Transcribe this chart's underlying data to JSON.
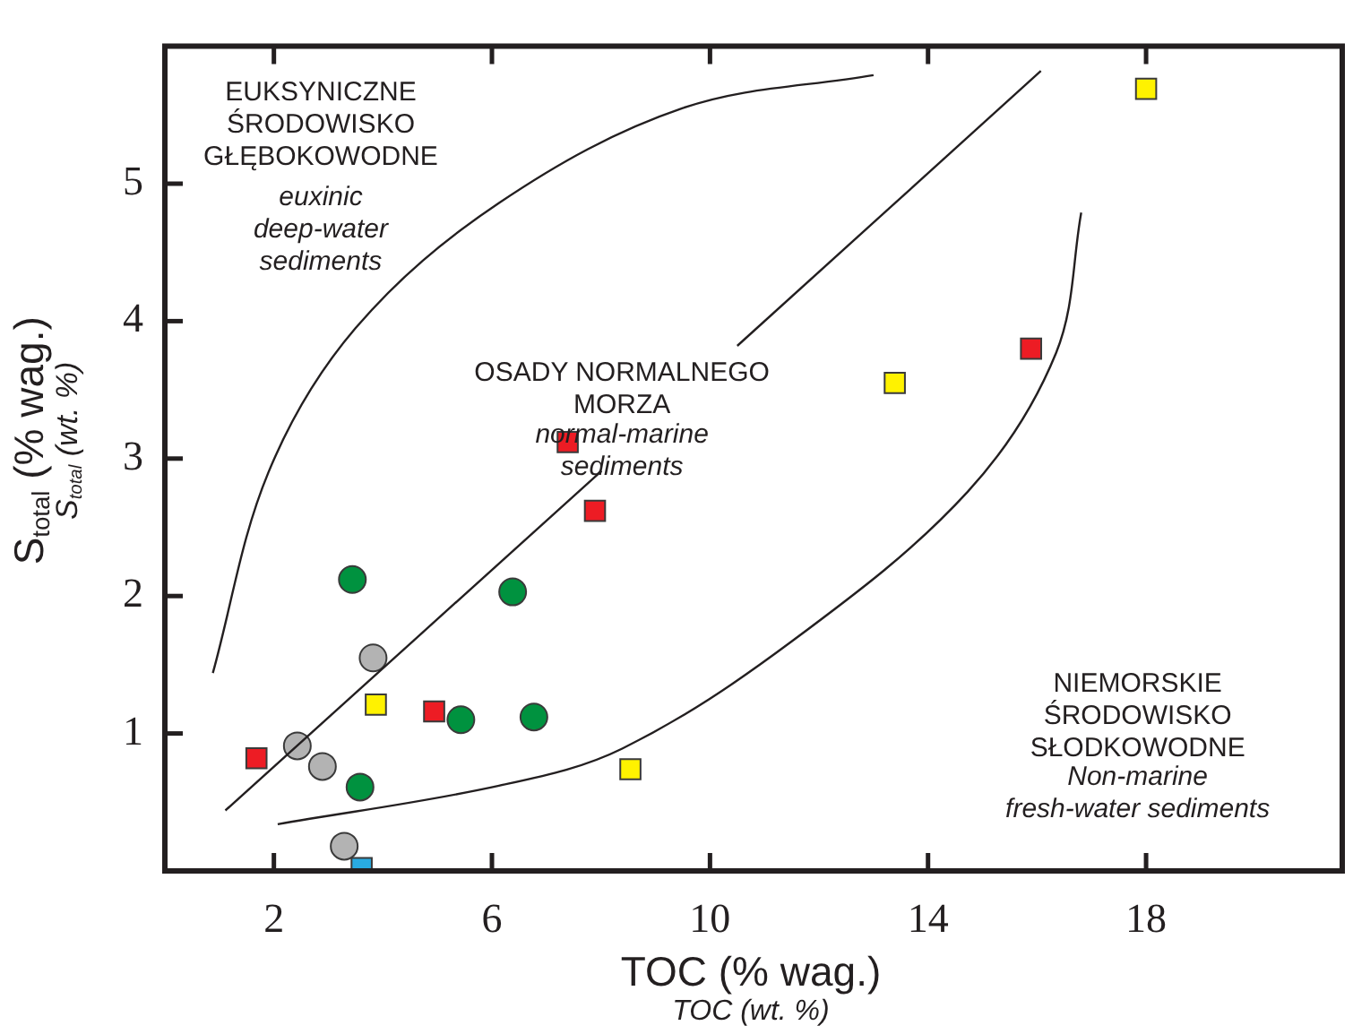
{
  "chart_data": {
    "type": "scatter",
    "xlabel": "TOC (% wag.)\nTOC (wt. %)",
    "ylabel": "S$_{total}$ (% wag.)\nS$_{total}$ (wt. %)",
    "xlim": [
      0,
      21.5
    ],
    "ylim": [
      0,
      6
    ],
    "xticks": [
      2,
      6,
      10,
      14,
      18
    ],
    "yticks": [
      1,
      2,
      3,
      4,
      5
    ],
    "grid": false,
    "legend": false,
    "annotations": [
      "EUKSYNICZNE\nŚRODOWISKO\nGŁĘBOKOWODNE",
      "euxinic\ndeep-water\nsediments",
      "OSADY NORMALNEGO\nMORZA",
      "normal-marine\nsediments",
      "NIEMORSKIE\nŚRODOWISKO\nSŁODKOWODNE",
      "Non-marine\nfresh-water sediments"
    ],
    "series": [
      {
        "type": "line",
        "color": "#231f20",
        "marker": "none",
        "x": [
          0.88,
          1.9,
          3.5,
          6.13,
          9.5,
          13.0
        ],
        "values": [
          1.44,
          2.9,
          3.95,
          4.86,
          5.55,
          5.79
        ]
      },
      {
        "type": "line",
        "color": "#231f20",
        "marker": "none",
        "x": [
          1.11,
          8.01,
          9.2,
          10.5,
          16.07
        ],
        "values": [
          0.44,
          2.91,
          null,
          3.82,
          5.82
        ]
      },
      {
        "type": "line",
        "color": "#231f20",
        "marker": "none",
        "x": [
          2.07,
          6.13,
          8.39,
          11.5,
          14.73,
          16.35,
          16.81
        ],
        "values": [
          0.34,
          0.62,
          0.89,
          1.67,
          2.76,
          3.77,
          4.79
        ]
      },
      {
        "type": "scatter",
        "color": "#b3b3b3",
        "marker": "circle",
        "x": [
          2.43,
          2.89,
          3.82,
          3.29
        ],
        "values": [
          0.91,
          0.76,
          1.55,
          0.18
        ]
      },
      {
        "type": "scatter",
        "color": "#00923f",
        "marker": "circle",
        "x": [
          3.44,
          6.38,
          3.58,
          5.43,
          6.77
        ],
        "values": [
          2.12,
          2.03,
          0.61,
          1.1,
          1.12
        ]
      },
      {
        "type": "scatter",
        "color": "#ed1c24",
        "marker": "square",
        "x": [
          1.68,
          4.94,
          7.39,
          7.89,
          15.89
        ],
        "values": [
          0.82,
          1.16,
          3.12,
          2.62,
          3.8
        ]
      },
      {
        "type": "scatter",
        "color": "#fff200",
        "marker": "square",
        "x": [
          3.87,
          8.54,
          13.39,
          18.0
        ],
        "values": [
          1.21,
          0.74,
          3.55,
          5.69
        ]
      },
      {
        "type": "scatter",
        "color": "#29abe2",
        "marker": "square",
        "x": [
          3.61
        ],
        "values": [
          0.02
        ]
      }
    ]
  }
}
